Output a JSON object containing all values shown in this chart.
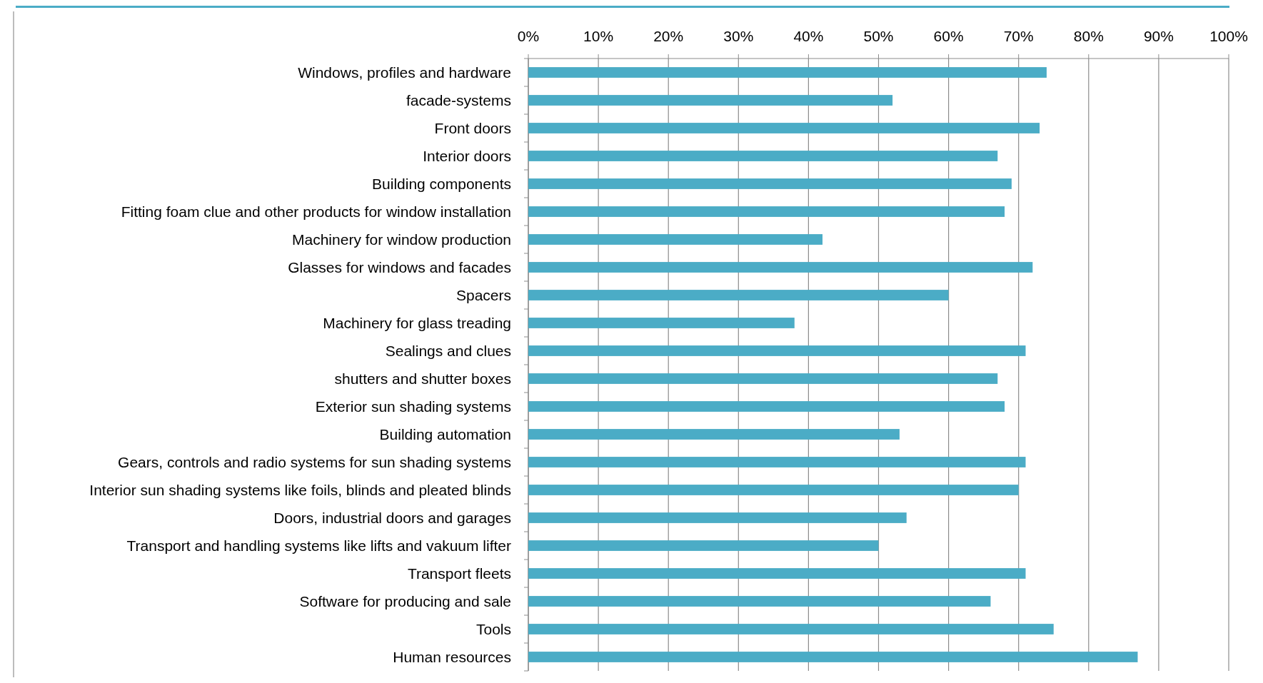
{
  "chart_data": {
    "type": "bar",
    "orientation": "horizontal",
    "categories": [
      "Windows, profiles and hardware",
      "facade-systems",
      "Front doors",
      "Interior doors",
      "Building components",
      "Fitting foam clue and other products for window installation",
      "Machinery for window production",
      "Glasses for windows and facades",
      "Spacers",
      "Machinery for glass treading",
      "Sealings and clues",
      "shutters and shutter boxes",
      "Exterior sun shading systems",
      "Building automation",
      "Gears, controls and radio systems for sun shading systems",
      "Interior sun shading systems like foils, blinds and pleated blinds",
      "Doors, industrial doors and garages",
      "Transport and handling systems like lifts and vakuum lifter",
      "Transport fleets",
      "Software for producing and sale",
      "Tools",
      "Human resources"
    ],
    "values": [
      74,
      52,
      73,
      67,
      69,
      68,
      42,
      72,
      60,
      38,
      71,
      67,
      68,
      53,
      71,
      70,
      54,
      50,
      71,
      66,
      75,
      87
    ],
    "color": "#4bacc6",
    "xlim": [
      0,
      100
    ],
    "xticks": [
      {
        "value": 0,
        "label": "0%"
      },
      {
        "value": 10,
        "label": "10%"
      },
      {
        "value": 20,
        "label": "20%"
      },
      {
        "value": 30,
        "label": "30%"
      },
      {
        "value": 40,
        "label": "40%"
      },
      {
        "value": 50,
        "label": "50%"
      },
      {
        "value": 60,
        "label": "60%"
      },
      {
        "value": 70,
        "label": "70%"
      },
      {
        "value": 80,
        "label": "80%"
      },
      {
        "value": 90,
        "label": "90%"
      },
      {
        "value": 100,
        "label": "100%"
      }
    ],
    "grid": "x"
  }
}
